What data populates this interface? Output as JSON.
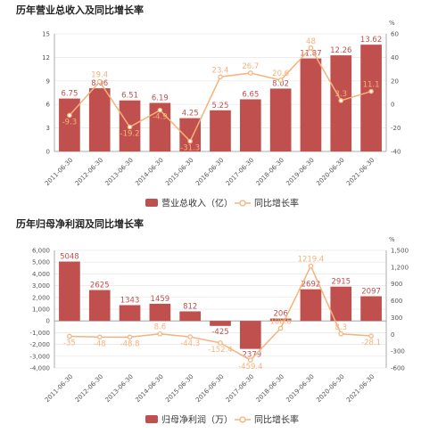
{
  "chart_data": [
    {
      "type": "bar",
      "title": "历年营业总收入及同比增长率",
      "categories": [
        "2011-06-30",
        "2012-06-30",
        "2013-06-30",
        "2014-06-30",
        "2015-06-30",
        "2016-06-30",
        "2017-06-30",
        "2018-06-30",
        "2019-06-30",
        "2020-06-30",
        "2021-06-30"
      ],
      "series": [
        {
          "name": "营业总收入（亿）",
          "type": "bar",
          "values": [
            6.75,
            8.06,
            6.51,
            6.19,
            4.25,
            5.25,
            6.65,
            8.02,
            11.87,
            12.26,
            13.62
          ],
          "labels": [
            "6.75",
            "8.06",
            "6.51",
            "6.19",
            "4.25",
            "5.25",
            "6.65",
            "8.02",
            "11.87",
            "12.26",
            "13.62"
          ]
        },
        {
          "name": "同比增长率",
          "type": "line",
          "values": [
            -9.3,
            19.4,
            -19.2,
            -4.9,
            -31.3,
            23.4,
            26.7,
            20.6,
            48.0,
            3.3,
            11.1
          ],
          "labels": [
            "-9.3",
            "19.4",
            "-19.2",
            "-4.9",
            "-31.3",
            "23.4",
            "26.7",
            "20.6",
            "48",
            "3.3",
            "11.1"
          ]
        }
      ],
      "y_left": {
        "min": 0,
        "max": 15,
        "ticks": [
          0,
          3,
          6,
          9,
          12,
          15
        ]
      },
      "y_right": {
        "min": -40,
        "max": 60,
        "ticks": [
          -40,
          -20,
          0,
          20,
          40,
          60
        ],
        "unit": "%"
      },
      "colors": {
        "bar": "#c0504d",
        "line": "#f5b27b"
      },
      "legend": "bottom"
    },
    {
      "type": "bar",
      "title": "历年归母净利润及同比增长率",
      "categories": [
        "2011-06-30",
        "2012-06-30",
        "2013-06-30",
        "2014-06-30",
        "2015-06-30",
        "2016-06-30",
        "2017-06-30",
        "2018-06-30",
        "2019-06-30",
        "2020-06-30",
        "2021-06-30"
      ],
      "series": [
        {
          "name": "归母净利润（万）",
          "type": "bar",
          "values": [
            5048,
            2625,
            1343,
            1459,
            812,
            -425,
            -2379,
            206,
            2692,
            2915,
            2097
          ],
          "labels": [
            "5048",
            "2625",
            "1343",
            "1459",
            "812",
            "-425",
            "-2379",
            "206",
            "2692",
            "2915",
            "2097"
          ]
        },
        {
          "name": "同比增长率",
          "type": "line",
          "values": [
            -35,
            -48,
            -48.8,
            8.6,
            -44.3,
            -152.4,
            -459.4,
            108.6,
            1219.4,
            8.3,
            -28.1
          ],
          "labels": [
            "-35",
            "-48",
            "-48.8",
            "8.6",
            "-44.3",
            "-152.4",
            "-459.4",
            "108.6",
            "1219.4",
            "8.3",
            "-28.1"
          ]
        }
      ],
      "y_left": {
        "min": -4000,
        "max": 6000,
        "ticks": [
          "-4,000",
          "-3,000",
          "-2,000",
          "-1,000",
          "0",
          "1,000",
          "2,000",
          "3,000",
          "4,000",
          "5,000",
          "6,000"
        ]
      },
      "y_right": {
        "min": -600,
        "max": 1500,
        "ticks": [
          "-600",
          "-300",
          "0",
          "300",
          "600",
          "900",
          "1,200",
          "1,500"
        ],
        "unit": "%"
      },
      "colors": {
        "bar": "#c0504d",
        "line": "#f5b27b"
      },
      "legend": "bottom"
    }
  ]
}
